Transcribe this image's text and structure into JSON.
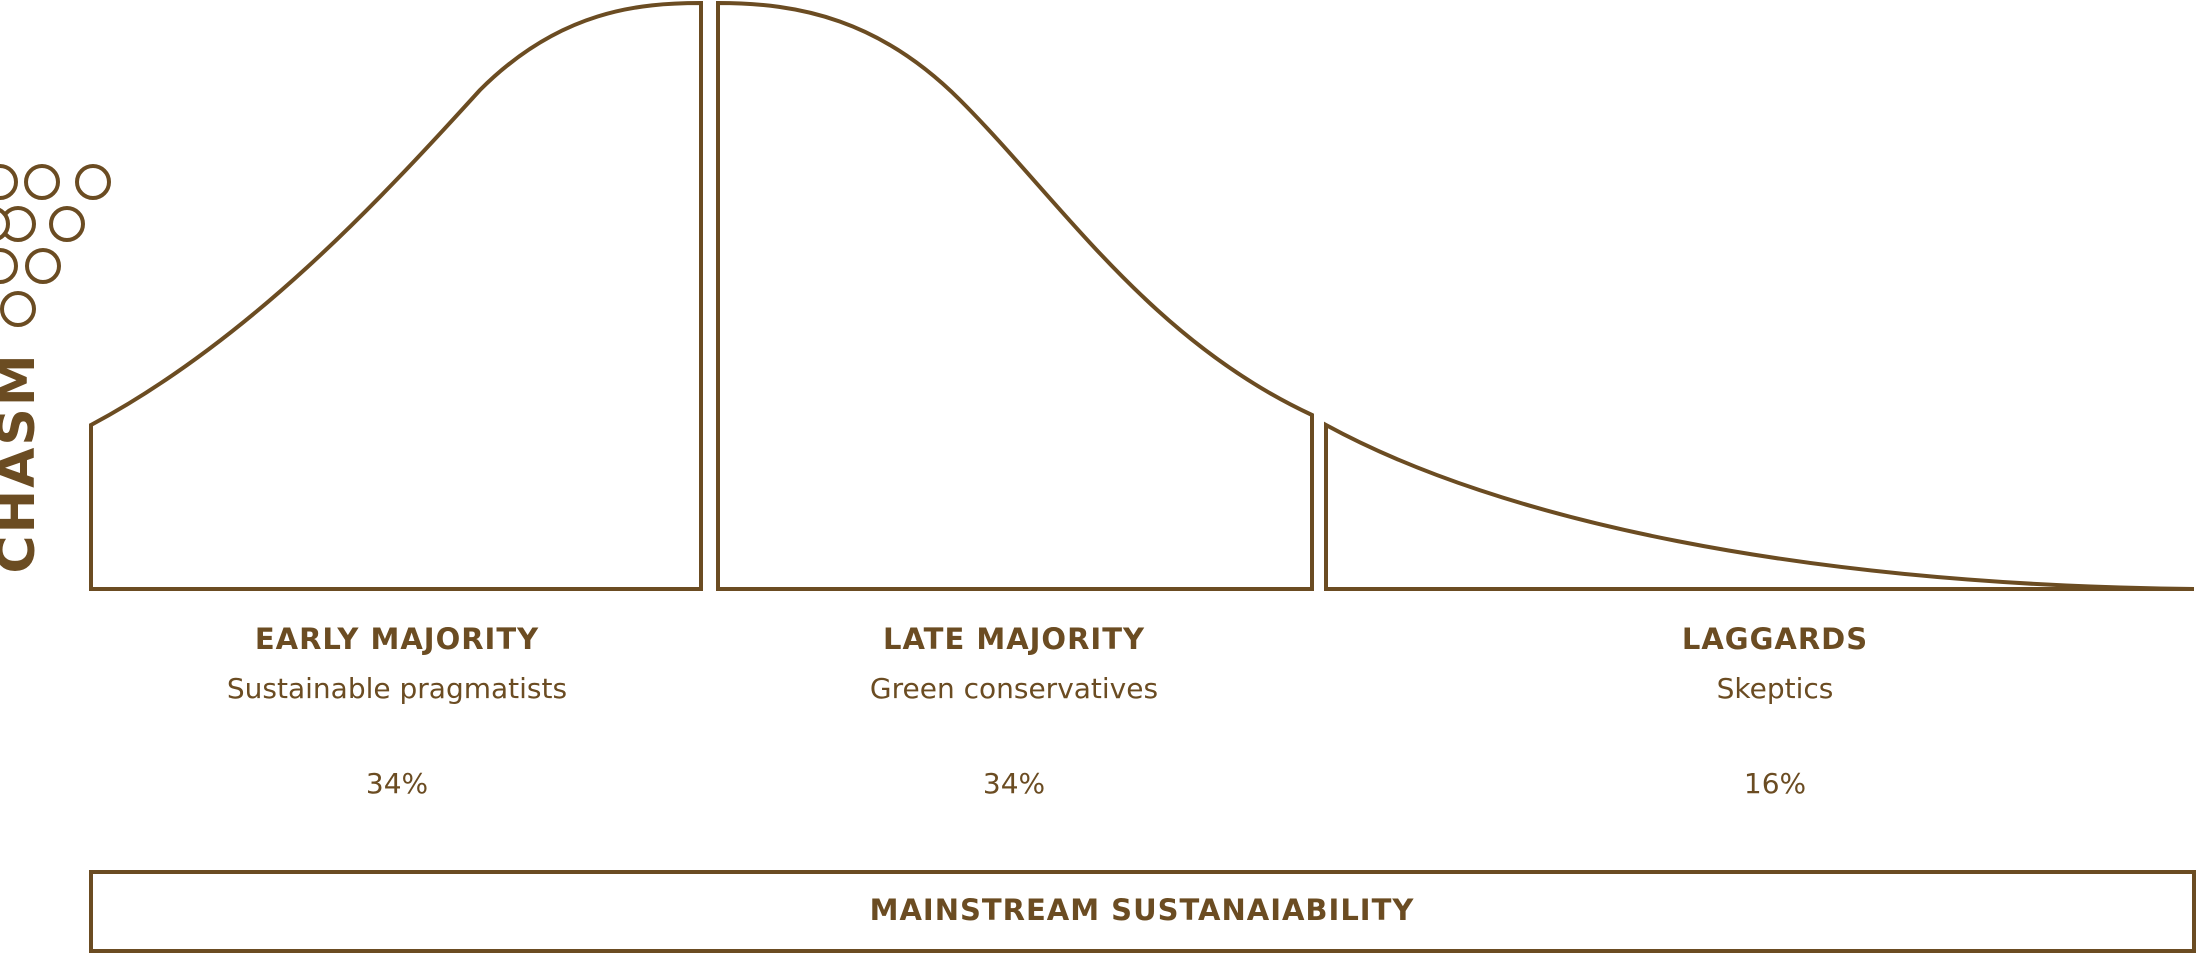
{
  "chasm": "CHASM",
  "segments": [
    {
      "title": "EARLY MAJORITY",
      "subtitle": "Sustainable pragmatists",
      "share": "34%"
    },
    {
      "title": "LATE MAJORITY",
      "subtitle": "Green conservatives",
      "share": "34%"
    },
    {
      "title": "LAGGARDS",
      "subtitle": "Skeptics",
      "share": "16%"
    }
  ],
  "banner": "MAINSTREAM SUSTANAIABILITY"
}
